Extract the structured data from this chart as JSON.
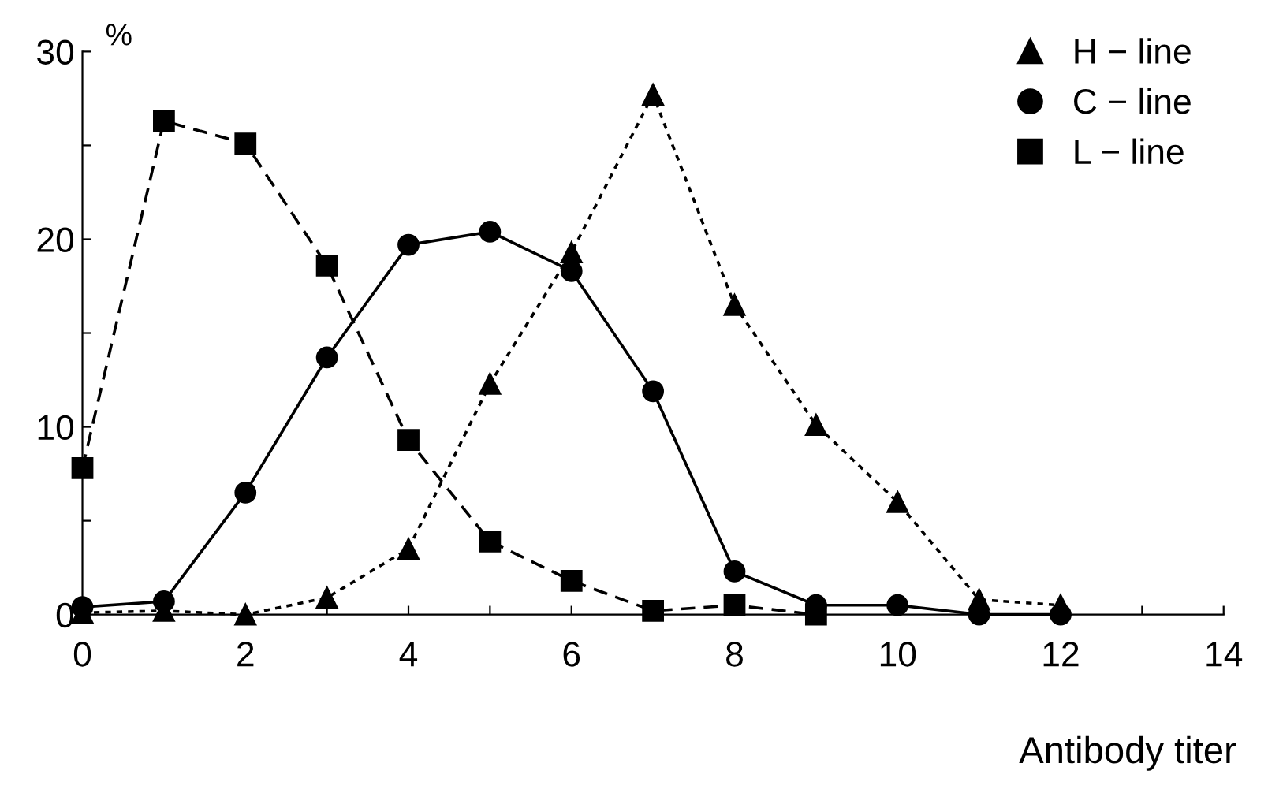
{
  "chart_data": {
    "type": "line",
    "xlabel": "Antibody titer",
    "ylabel": "%",
    "x": [
      0,
      1,
      2,
      3,
      4,
      5,
      6,
      7,
      8,
      9,
      10,
      11,
      12
    ],
    "series": [
      {
        "name": "H − line",
        "color": "#000000",
        "marker": "triangle",
        "line_style": "dotted",
        "values": [
          0.1,
          0.2,
          0,
          0.9,
          3.5,
          12.3,
          19.3,
          27.7,
          16.5,
          10.1,
          6.0,
          0.8,
          0.5
        ]
      },
      {
        "name": "C − line",
        "color": "#000000",
        "marker": "circle",
        "line_style": "solid",
        "values": [
          0.4,
          0.7,
          6.5,
          13.7,
          19.7,
          20.4,
          18.3,
          11.9,
          2.3,
          0.5,
          0.5,
          0,
          0
        ]
      },
      {
        "name": "L − line",
        "color": "#000000",
        "marker": "square",
        "line_style": "dashed",
        "values": [
          7.8,
          26.3,
          25.1,
          18.6,
          9.3,
          3.9,
          1.8,
          0.2,
          0.5,
          0,
          null,
          null,
          null
        ]
      }
    ],
    "xlim": [
      0,
      14
    ],
    "ylim": [
      0,
      30
    ],
    "xticks": [
      0,
      {
        "value": 1,
        "label": null
      },
      2,
      {
        "value": 3,
        "label": null
      },
      4,
      {
        "value": 5,
        "label": null
      },
      6,
      {
        "value": 7,
        "label": null
      },
      8,
      {
        "value": 9,
        "label": null
      },
      10,
      {
        "value": 11,
        "label": null
      },
      12,
      {
        "value": 13,
        "label": null
      },
      14
    ],
    "yticks": [
      0,
      {
        "value": 5,
        "label": null
      },
      10,
      {
        "value": 15,
        "label": null
      },
      20,
      {
        "value": 25,
        "label": null
      },
      30
    ],
    "grid": false,
    "legend": "top right"
  }
}
